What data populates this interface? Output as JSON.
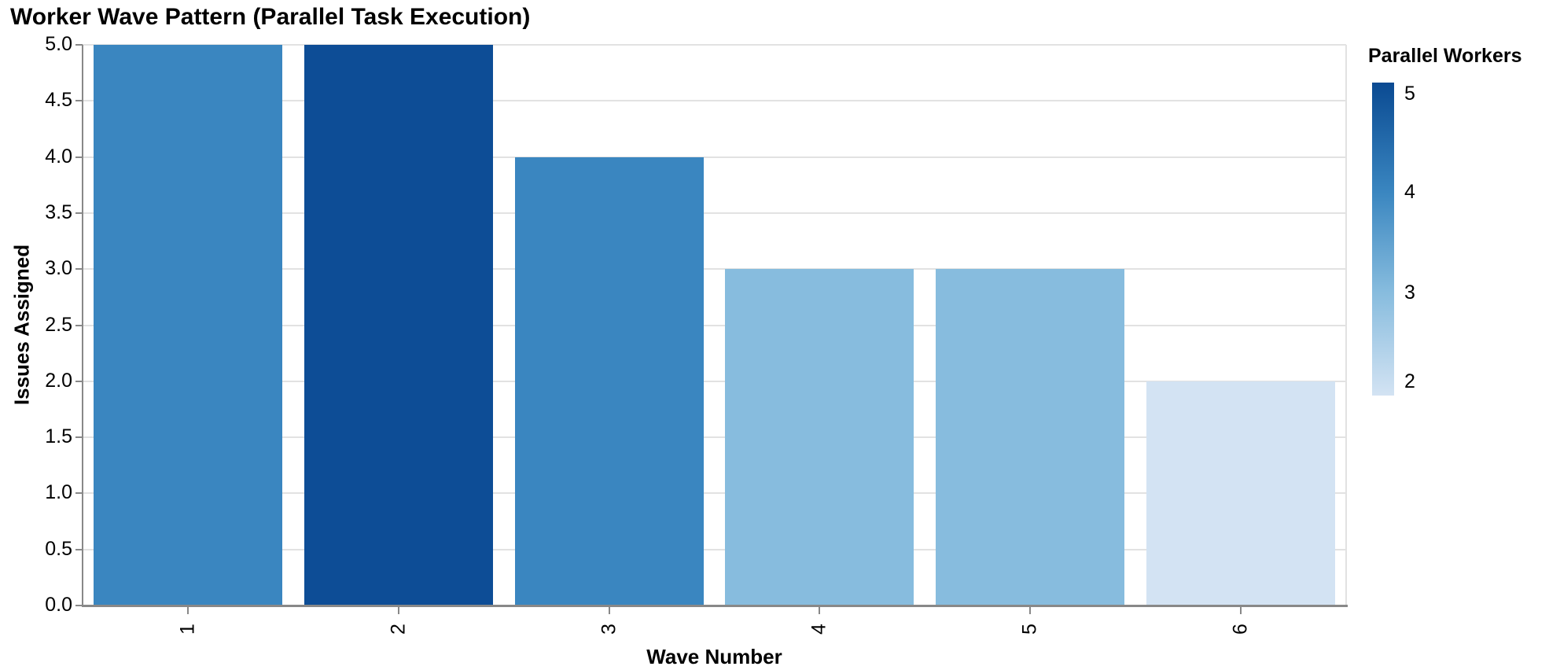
{
  "chart_data": {
    "type": "bar",
    "title": "Worker Wave Pattern (Parallel Task Execution)",
    "xlabel": "Wave Number",
    "ylabel": "Issues Assigned",
    "categories": [
      "1",
      "2",
      "3",
      "4",
      "5",
      "6"
    ],
    "values": [
      5,
      5,
      4,
      3,
      3,
      2
    ],
    "series_name": "Issues Assigned",
    "color_encoding": "Parallel Workers",
    "color_values": [
      4,
      5,
      4,
      3,
      3,
      2
    ],
    "bar_colors": [
      "#3a86c0",
      "#0d4d96",
      "#3a86c0",
      "#87bcde",
      "#87bcde",
      "#d3e3f3"
    ],
    "ylim": [
      0,
      5
    ],
    "yticks": [
      "0.0",
      "0.5",
      "1.0",
      "1.5",
      "2.0",
      "2.5",
      "3.0",
      "3.5",
      "4.0",
      "4.5",
      "5.0"
    ],
    "grid": true,
    "legend": {
      "title": "Parallel Workers",
      "position": "right",
      "gradient_top_to_bottom": [
        "#0a4a92",
        "#3a86c0",
        "#87bcde",
        "#d3e3f3"
      ],
      "ticks": [
        {
          "label": "5",
          "pos": 0.035
        },
        {
          "label": "4",
          "pos": 0.348
        },
        {
          "label": "3",
          "pos": 0.67
        },
        {
          "label": "2",
          "pos": 0.955
        }
      ]
    },
    "colors": {
      "axis_line": "#888888",
      "gridline": "#e2e2e2",
      "text": "#000000",
      "background": "#ffffff"
    }
  }
}
